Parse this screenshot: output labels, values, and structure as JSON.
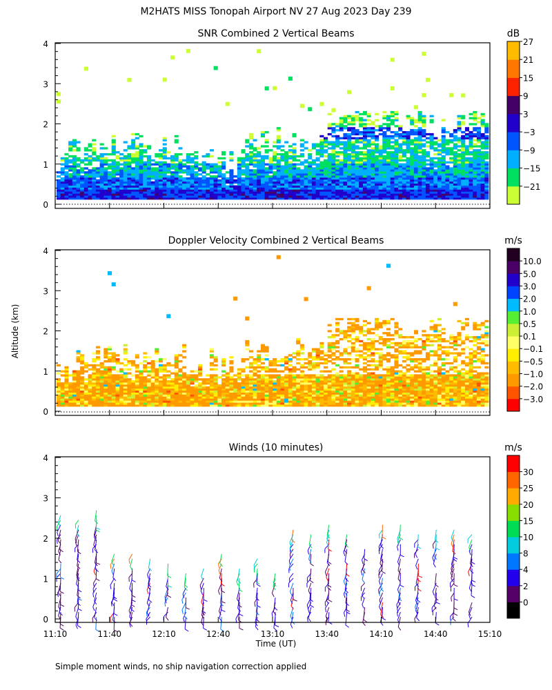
{
  "title": "M2HATS MISS Tonopah Airport NV  27 Aug 2023 Day 239",
  "footnote": "Simple moment winds, no ship navigation correction applied",
  "ylabel": "Altitude (km)",
  "xlabel": "Time (UT)",
  "chart_data": [
    {
      "type": "heatmap",
      "title": "SNR Combined 2 Vertical Beams",
      "colorbar_unit": "dB",
      "colorbar_ticks": [
        "27",
        "21",
        "15",
        "9",
        "3",
        "−3",
        "−9",
        "−15",
        "−21"
      ],
      "colors": [
        "#ccff33",
        "#00e060",
        "#00b0ff",
        "#0055ff",
        "#2200cc",
        "#440066",
        "#ff2200",
        "#ff7700",
        "#ffbb00"
      ],
      "x_range": [
        "11:10",
        "15:10"
      ],
      "ylim": [
        0,
        4
      ],
      "yticks": [
        "0",
        "1",
        "2",
        "3",
        "4"
      ]
    },
    {
      "type": "heatmap",
      "title": "Doppler Velocity Combined 2 Vertical Beams",
      "colorbar_unit": "m/s",
      "colorbar_ticks": [
        "10.0",
        "5.0",
        "3.0",
        "2.0",
        "1.0",
        "0.5",
        "0.1",
        "−0.1",
        "−0.5",
        "−1.0",
        "−2.0",
        "−3.0"
      ],
      "colors": [
        "#ff0000",
        "#ff5500",
        "#ff9900",
        "#ffbb00",
        "#ffee00",
        "#ffff66",
        "#ccee33",
        "#55ee33",
        "#00bbff",
        "#0044ff",
        "#2200cc",
        "#4a0066",
        "#220022"
      ],
      "x_range": [
        "11:10",
        "15:10"
      ],
      "ylim": [
        0,
        4
      ],
      "yticks": [
        "0",
        "1",
        "2",
        "3",
        "4"
      ]
    },
    {
      "type": "scatter",
      "title": "Winds (10 minutes)",
      "colorbar_unit": "m/s",
      "colorbar_ticks": [
        "30",
        "25",
        "20",
        "15",
        "10",
        "8",
        "4",
        "2",
        "0"
      ],
      "colors": [
        "#000000",
        "#550066",
        "#2200ee",
        "#0077ff",
        "#00ccdd",
        "#00dd55",
        "#88dd00",
        "#ffaa00",
        "#ff6600",
        "#ff0000"
      ],
      "x_range": [
        "11:10",
        "15:10"
      ],
      "xticks": [
        "11:10",
        "11:40",
        "12:10",
        "12:40",
        "13:10",
        "13:40",
        "14:10",
        "14:40",
        "15:10"
      ],
      "ylim": [
        0,
        4
      ],
      "yticks": [
        "0",
        "1",
        "2",
        "3",
        "4"
      ]
    }
  ]
}
